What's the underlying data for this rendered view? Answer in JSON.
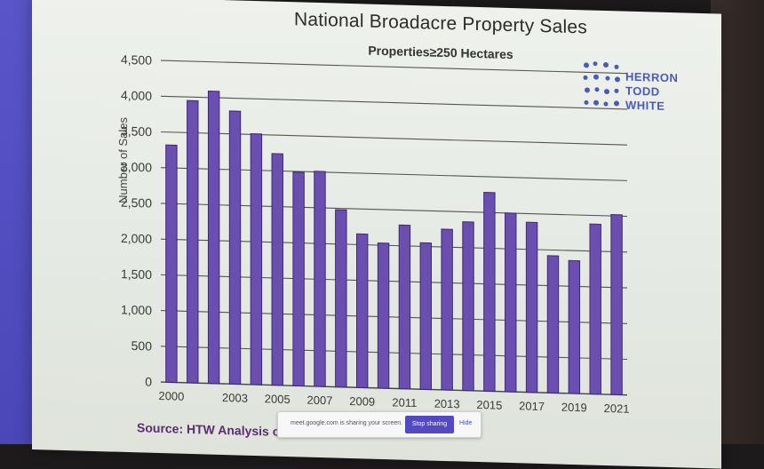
{
  "title": "National Broadacre Property Sales",
  "subtitle": "Properties≥250 Hectares",
  "logo": {
    "line1": "HERRON",
    "line2": "TODD",
    "line3": "WHITE"
  },
  "source": "Source: HTW Analysis of RPD",
  "share_bar": {
    "message": "meet.google.com is sharing your screen.",
    "stop_label": "Stop sharing",
    "hide_label": "Hide"
  },
  "colors": {
    "bar": "#6a4fb0",
    "bar_edge": "#3d2a72",
    "logo": "#4a5bb5"
  },
  "chart_data": {
    "type": "bar",
    "title": "National Broadacre Property Sales",
    "subtitle": "Properties≥250 Hectares",
    "xlabel": "",
    "ylabel": "Number of Sales",
    "ylim": [
      0,
      4500
    ],
    "yticks": [
      0,
      500,
      1000,
      1500,
      2000,
      2500,
      3000,
      3500,
      4000,
      4500
    ],
    "ytick_labels": [
      "0",
      "500",
      "1,000",
      "1,500",
      "2,000",
      "2,500",
      "3,000",
      "3,500",
      "4,000",
      "4,500"
    ],
    "grid": true,
    "categories": [
      "2000",
      "2001",
      "2002",
      "2003",
      "2004",
      "2005",
      "2006",
      "2007",
      "2008",
      "2009",
      "2010",
      "2011",
      "2012",
      "2013",
      "2014",
      "2015",
      "2016",
      "2017",
      "2018",
      "2019",
      "2020",
      "2021"
    ],
    "visible_xtick_labels": {
      "2000": "2000",
      "2003": "2003",
      "2005": "2005",
      "2007": "2007",
      "2009": "2009",
      "2011": "2011",
      "2013": "2013",
      "2015": "2015",
      "2017": "2017",
      "2019": "2019",
      "2021": "2021"
    },
    "values": [
      3320,
      3950,
      4090,
      3820,
      3510,
      3240,
      2990,
      3010,
      2480,
      2150,
      2030,
      2290,
      2050,
      2250,
      2360,
      2780,
      2500,
      2380,
      1920,
      1860,
      2380,
      2520
    ]
  }
}
